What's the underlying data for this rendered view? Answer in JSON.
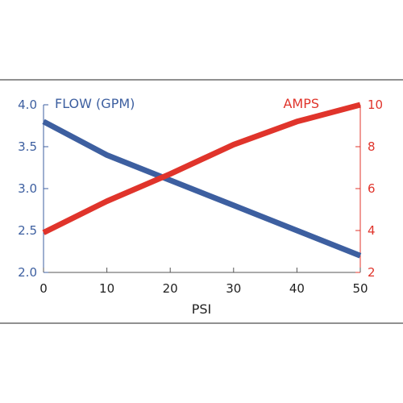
{
  "chart_data": {
    "type": "line",
    "x": [
      0,
      10,
      20,
      30,
      40,
      50
    ],
    "xlabel": "PSI",
    "xlim": [
      0,
      50
    ],
    "x_ticks": [
      "0",
      "10",
      "20",
      "30",
      "40",
      "50"
    ],
    "series": [
      {
        "name": "FLOW (GPM)",
        "axis": "left",
        "color": "#3d5fa0",
        "values": [
          3.8,
          3.4,
          3.1,
          2.8,
          2.5,
          2.2
        ]
      },
      {
        "name": "AMPS",
        "axis": "right",
        "color": "#e0342b",
        "values": [
          3.9,
          5.4,
          6.7,
          8.1,
          9.2,
          10.0
        ]
      }
    ],
    "y_left": {
      "ylim": [
        2.0,
        4.0
      ],
      "ticks": [
        "2.0",
        "2.5",
        "3.0",
        "3.5",
        "4.0"
      ],
      "color": "#3d5fa0"
    },
    "y_right": {
      "ylim": [
        2,
        10
      ],
      "ticks": [
        "2",
        "4",
        "6",
        "8",
        "10"
      ],
      "color": "#e0342b"
    },
    "legend": "inline-top",
    "grid": false,
    "frame_color": "#222222"
  }
}
